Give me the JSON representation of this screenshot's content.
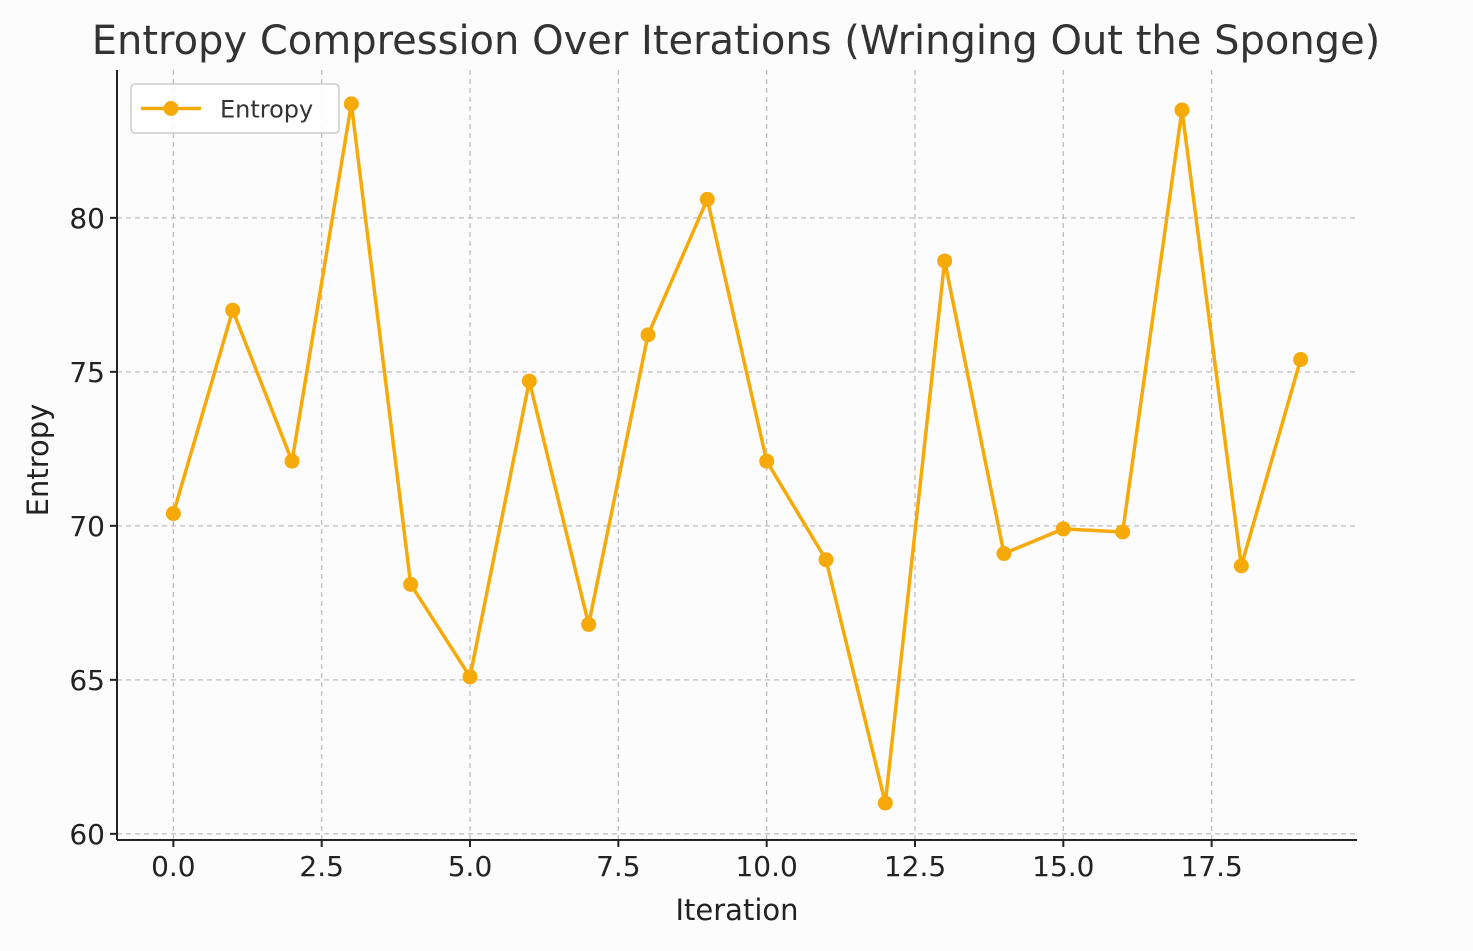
{
  "chart_data": {
    "type": "line",
    "title": "Entropy Compression Over Iterations (Wringing Out the Sponge)",
    "xlabel": "Iteration",
    "ylabel": "Entropy",
    "xlim": [
      -0.95,
      19.95
    ],
    "ylim": [
      59.8,
      84.8
    ],
    "xticks": [
      0.0,
      2.5,
      5.0,
      7.5,
      10.0,
      12.5,
      15.0,
      17.5
    ],
    "xtick_labels": [
      "0.0",
      "2.5",
      "5.0",
      "7.5",
      "10.0",
      "12.5",
      "15.0",
      "17.5"
    ],
    "yticks": [
      60,
      65,
      70,
      75,
      80
    ],
    "ytick_labels": [
      "60",
      "65",
      "70",
      "75",
      "80"
    ],
    "grid": true,
    "legend_position": "top-left",
    "series": [
      {
        "name": "Entropy",
        "color": "#f5aa0a",
        "marker": "circle",
        "x": [
          0,
          1,
          2,
          3,
          4,
          5,
          6,
          7,
          8,
          9,
          10,
          11,
          12,
          13,
          14,
          15,
          16,
          17,
          18,
          19
        ],
        "y": [
          70.4,
          77.0,
          72.1,
          83.7,
          68.1,
          65.1,
          74.7,
          66.8,
          76.2,
          80.6,
          72.1,
          68.9,
          61.0,
          78.6,
          69.1,
          69.9,
          69.8,
          83.5,
          68.7,
          75.4
        ]
      }
    ]
  }
}
